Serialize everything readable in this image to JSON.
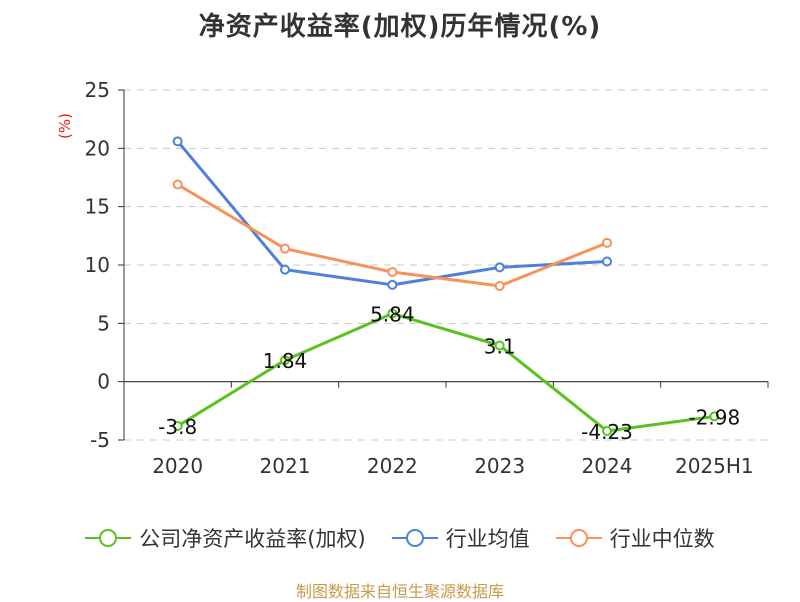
{
  "chart_data": {
    "type": "line",
    "title": "净资产收益率(加权)历年情况(%)",
    "ylabel": "(%)",
    "xlabel": "",
    "categories": [
      "2020",
      "2021",
      "2022",
      "2023",
      "2024",
      "2025H1"
    ],
    "ylim": [
      -5,
      25
    ],
    "yticks": [
      -5,
      0,
      5,
      10,
      15,
      20,
      25
    ],
    "grid": true,
    "legend_position": "bottom",
    "series": [
      {
        "name": "公司净资产收益率(加权)",
        "color": "#5ac21f",
        "values": [
          -3.8,
          1.84,
          5.84,
          3.1,
          -4.23,
          -2.98
        ],
        "labels": [
          "-3.8",
          "1.84",
          "5.84",
          "3.1",
          "-4.23",
          "-2.98"
        ]
      },
      {
        "name": "行业均值",
        "color": "#4f80dc",
        "values": [
          20.6,
          9.6,
          8.3,
          9.8,
          10.3,
          null
        ]
      },
      {
        "name": "行业中位数",
        "color": "#f7925a",
        "values": [
          16.9,
          11.4,
          9.4,
          8.2,
          11.9,
          null
        ]
      }
    ]
  },
  "source_note": "制图数据来自恒生聚源数据库"
}
